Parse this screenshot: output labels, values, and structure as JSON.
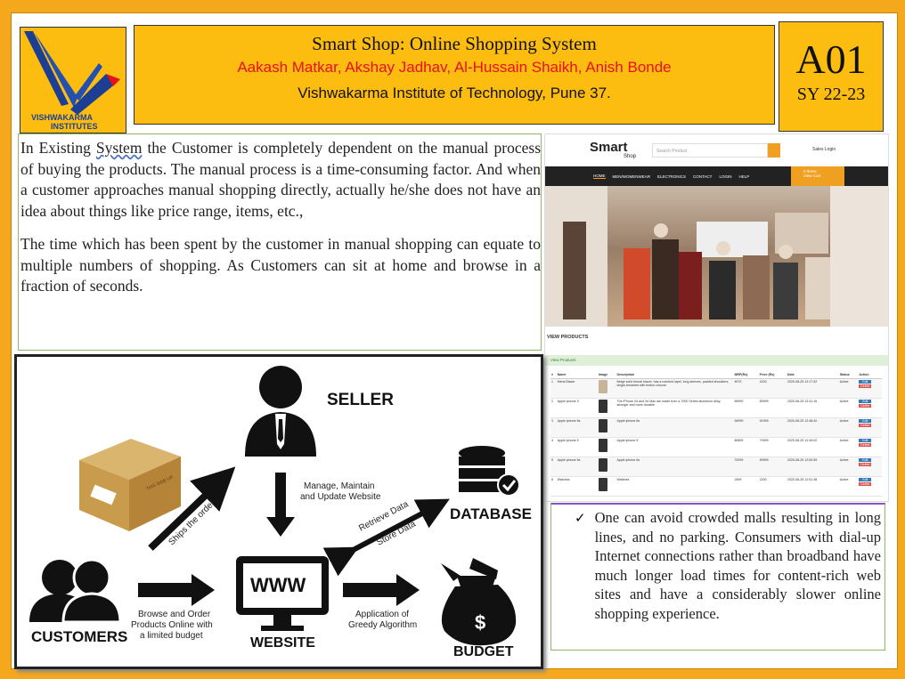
{
  "header": {
    "title": "Smart Shop: Online Shopping System",
    "authors": "Aakash Matkar, Akshay Jadhav, Al-Hussain Shaikh, Anish Bonde",
    "institute": "Vishwakarma Institute of Technology, Pune 37."
  },
  "logo": {
    "line1": "VISHWAKARMA",
    "line2": "INSTITUTES"
  },
  "badge": {
    "code": "A01",
    "year": "SY 22-23"
  },
  "intro": {
    "p1_pre": "In Existing ",
    "p1_word": "System",
    "p1_post": " the Customer is completely dependent on the manual process of buying the products. The manual process is a time-consuming factor. And when a customer approaches manual shopping directly, actually he/she does not have an idea about things like price range, items, etc.,",
    "p2": "The time which has been spent by the customer in manual shopping can equate to multiple numbers of shopping. As Customers can sit at home and browse in a fraction of seconds."
  },
  "screenshot": {
    "brand": "Smart",
    "brand_sub": "Shop",
    "search_placeholder": "Search Product",
    "account": "Sales Login",
    "nav": [
      "HOME",
      "MEN/WOMENWEAR",
      "ELECTRONICS",
      "CONTACT",
      "LOGIN",
      "HELP"
    ],
    "cart": "0 Items",
    "cart_sub": "View Cart",
    "view_title": "VIEW PRODUCTS",
    "view_sub": "View Products",
    "columns": [
      "#",
      "Name",
      "Image",
      "Description",
      "MRP(Rs)",
      "Price (Rs)",
      "Date",
      "Status",
      "Action"
    ],
    "rows": [
      {
        "no": "1",
        "name": "Mens Blazer",
        "desc": "Beige solid formal blazer, has a notched lapel, long sleeves, padded shoulders, single-breasted with button closure.",
        "mrp": "4979",
        "price": "4200",
        "date": "2020-08-25 12:17:32",
        "status": "Active"
      },
      {
        "no": "2",
        "name": "Apple iphone X",
        "desc": "The iPhone Xs and Xs Max are made from a 7000 Series aluminum alloy, stronger and more durable.",
        "mrp": "89999",
        "price": "89999",
        "date": "2020-08-25 12:41:16",
        "status": "Active"
      },
      {
        "no": "3",
        "name": "Apple iphone 6s",
        "desc": "Apple iphone 6s",
        "mrp": "54999",
        "price": "51999",
        "date": "2020-08-25 12:48:42",
        "status": "Active"
      },
      {
        "no": "4",
        "name": "Apple iphone 5",
        "desc": "Apple iphone 5",
        "mrp": "80899",
        "price": "79999",
        "date": "2020-08-25 12:49:02",
        "status": "Active"
      },
      {
        "no": "5",
        "name": "Apple iphone 6s",
        "desc": "Apple iphone 6s",
        "mrp": "79299",
        "price": "69999",
        "date": "2020-08-25 12:50:55",
        "status": "Active"
      },
      {
        "no": "6",
        "name": "Watches",
        "desc": "Watches",
        "mrp": "2499",
        "price": "2200",
        "date": "2020-08-25 12:51:38",
        "status": "Active"
      }
    ],
    "edit": "Edit",
    "delete": "Delete"
  },
  "diagram": {
    "seller": "SELLER",
    "database": "DATABASE",
    "customers": "CUSTOMERS",
    "website": "WEBSITE",
    "budget": "BUDGET",
    "www": "WWW",
    "manage_1": "Manage, Maintain",
    "manage_2": "and Update Website",
    "retrieve": "Retrieve Data",
    "store": "Store Data",
    "ships": "Ships the order",
    "browse_1": "Browse and Order",
    "browse_2": "Products Online with",
    "browse_3": "a limited budget",
    "greedy_1": "Application of",
    "greedy_2": "Greedy Algorithm",
    "box_label": "THIS SIDE UP"
  },
  "benefit": {
    "check": "✓",
    "text": "One can avoid crowded malls resulting in long lines, and no parking. Consumers with dial-up Internet connections rather than broadband have much longer load times for content-rich web sites and have a considerably slower online shopping experience."
  },
  "colors": {
    "frame": "#f5a81c",
    "panel": "#fdbd10",
    "author_red": "#e8101a",
    "logo_blue": "#1c3f94"
  }
}
